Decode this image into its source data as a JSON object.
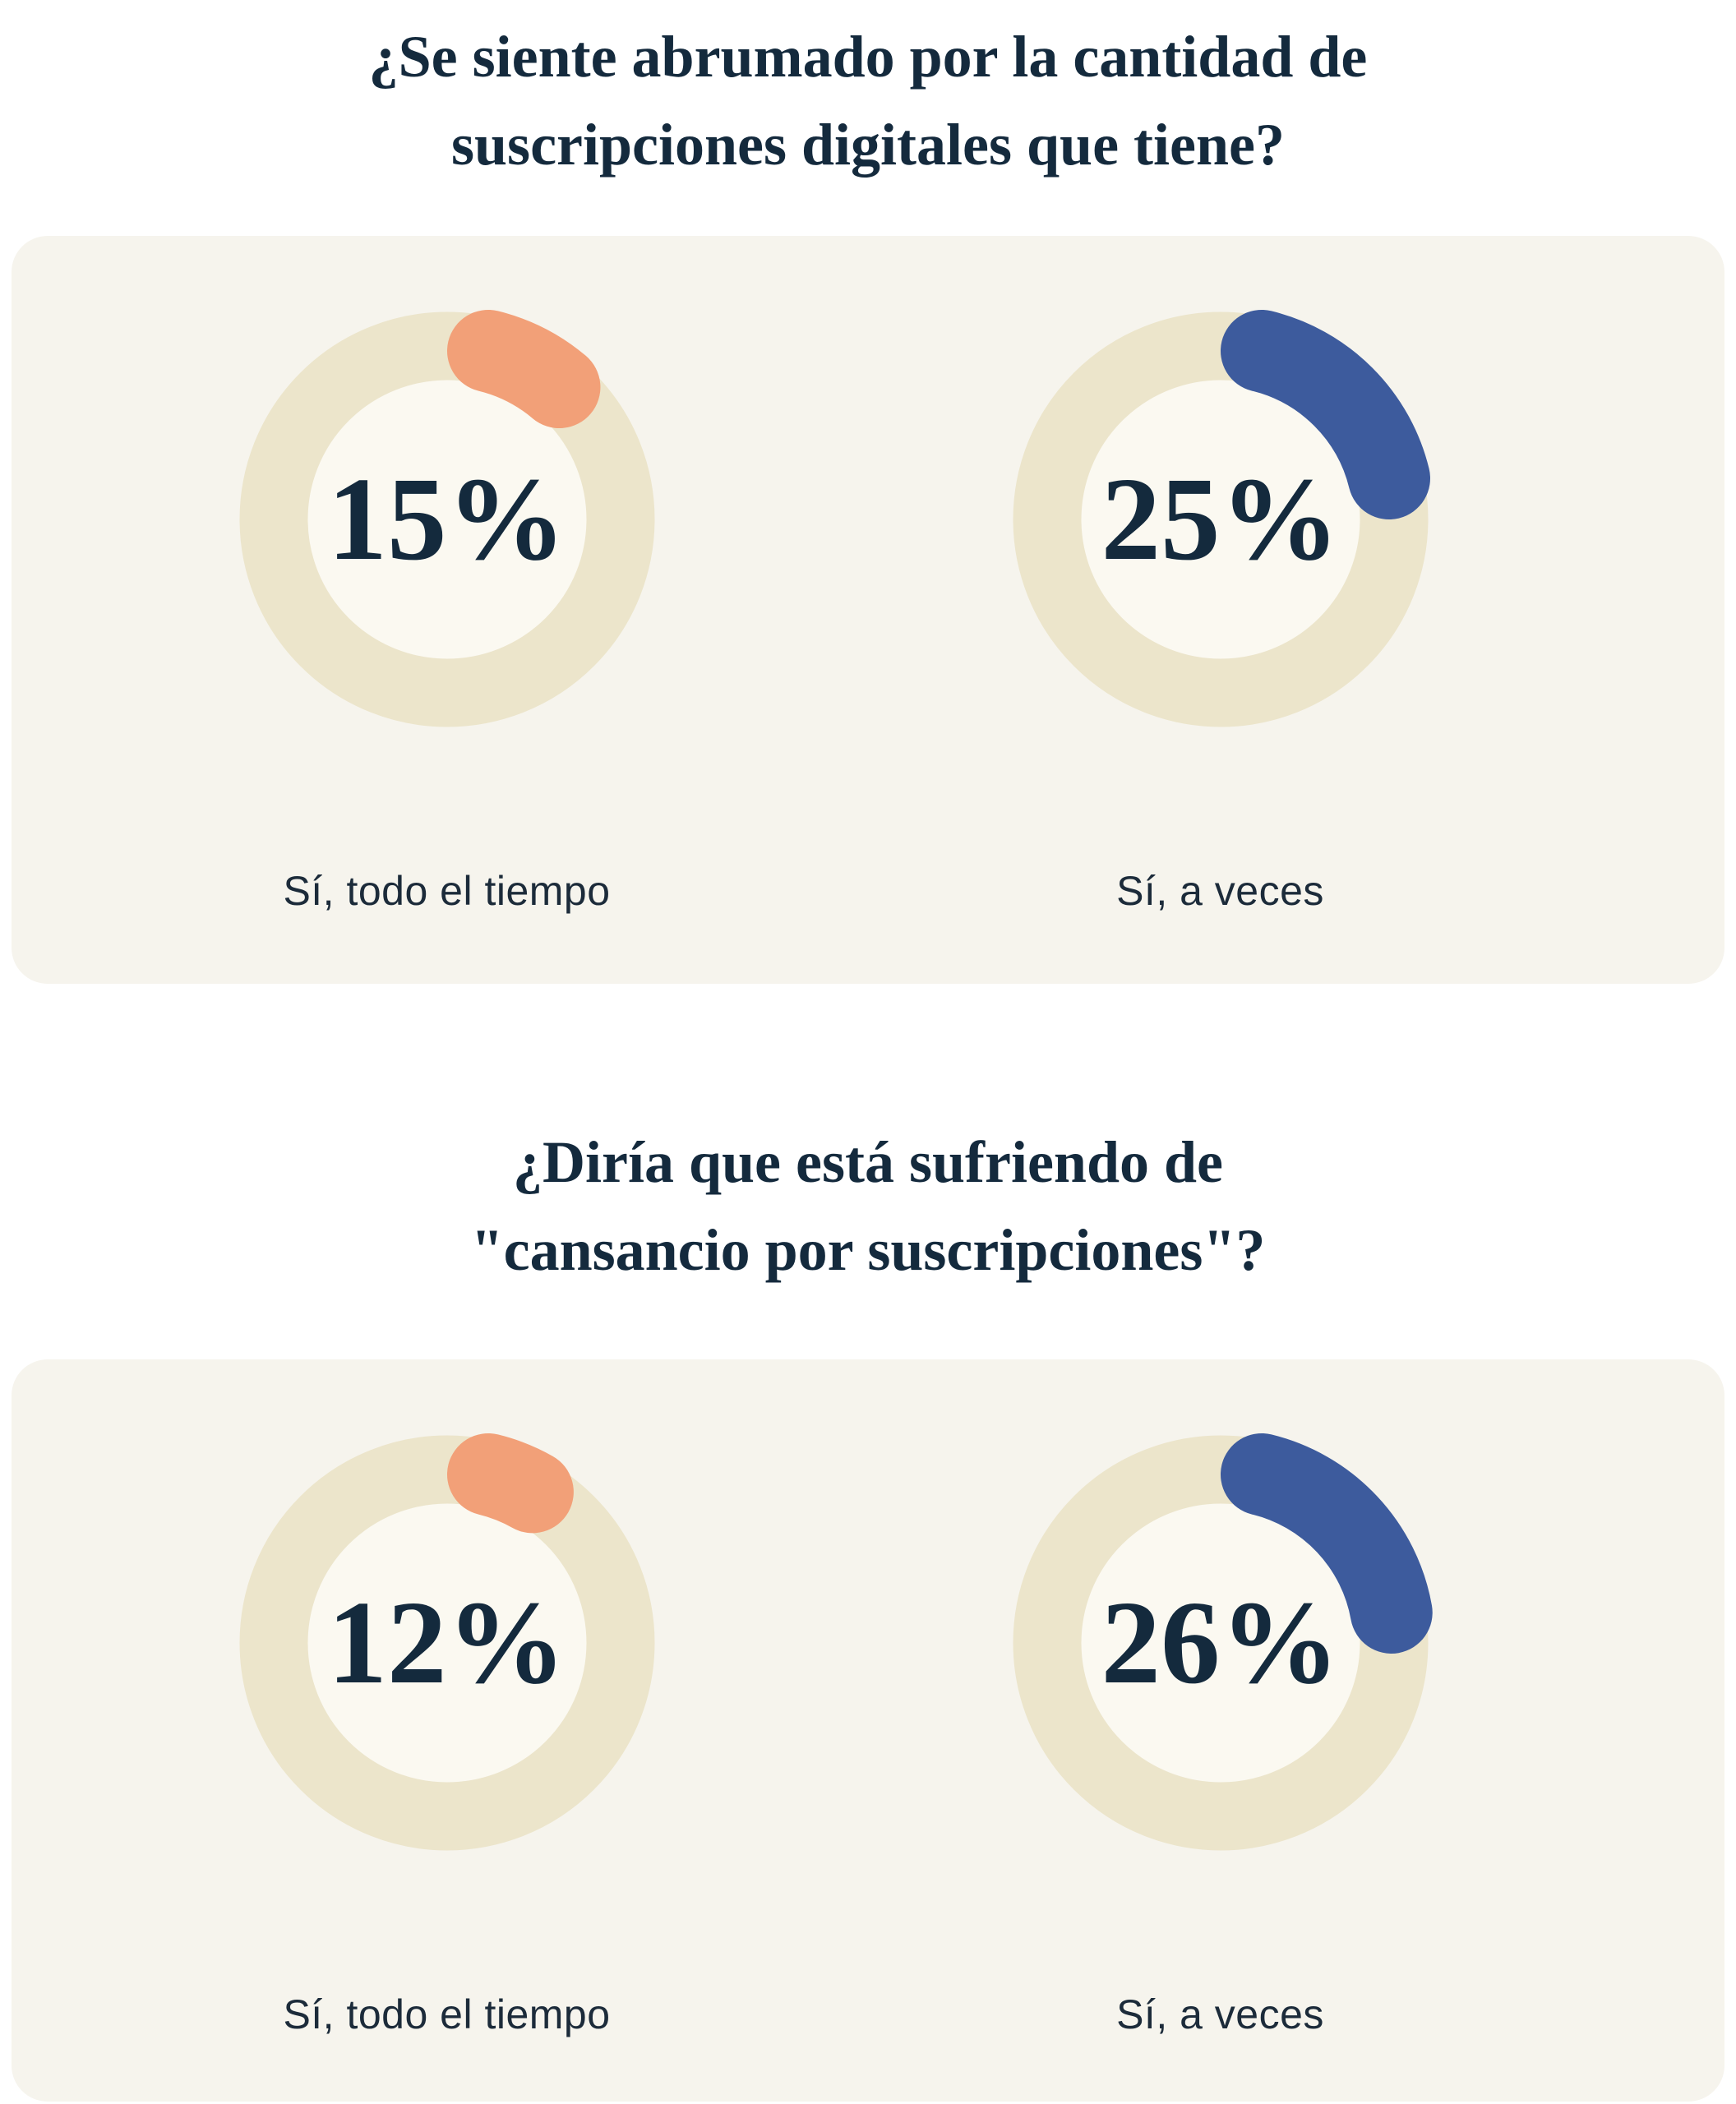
{
  "colors": {
    "page_bg": "#ffffff",
    "card_bg": "#f6f4ed",
    "title_text": "#142a3d",
    "value_text": "#142a3d",
    "label_text": "#1c2b3a",
    "orange_accent": "#f2a078",
    "blue_accent": "#3d5b9d",
    "ring_track": "#ece5cb"
  },
  "chart_data": [
    {
      "type": "pie",
      "variant": "donut_gauge_pair",
      "question": "¿Se siente abrumado por la cantidad de suscripciones digitales que tiene?",
      "title_lines": [
        "¿Se siente abrumado por la cantidad de",
        "suscripciones digitales que tiene?"
      ],
      "range_pct": [
        0,
        100
      ],
      "track_color": "#ece5cb",
      "inner_color": "#fbf9f1",
      "gauges": [
        {
          "label": "Sí, todo el tiempo",
          "value_pct": 15,
          "display": "15%",
          "arc_color": "#f2a078",
          "arc_color_name": "orange"
        },
        {
          "label": "Sí, a veces",
          "value_pct": 25,
          "display": "25%",
          "arc_color": "#3d5b9d",
          "arc_color_name": "blue"
        }
      ]
    },
    {
      "type": "pie",
      "variant": "donut_gauge_pair",
      "question": "¿Diría que está sufriendo de \"cansancio por suscripciones\"?",
      "title_lines": [
        "¿Diría que está sufriendo de",
        "\"cansancio por suscripciones\"?"
      ],
      "range_pct": [
        0,
        100
      ],
      "track_color": "#ece5cb",
      "inner_color": "#fbf9f1",
      "gauges": [
        {
          "label": "Sí, todo el tiempo",
          "value_pct": 12,
          "display": "12%",
          "arc_color": "#f2a078",
          "arc_color_name": "orange"
        },
        {
          "label": "Sí, a veces",
          "value_pct": 26,
          "display": "26%",
          "arc_color": "#3d5b9d",
          "arc_color_name": "blue"
        }
      ]
    }
  ]
}
